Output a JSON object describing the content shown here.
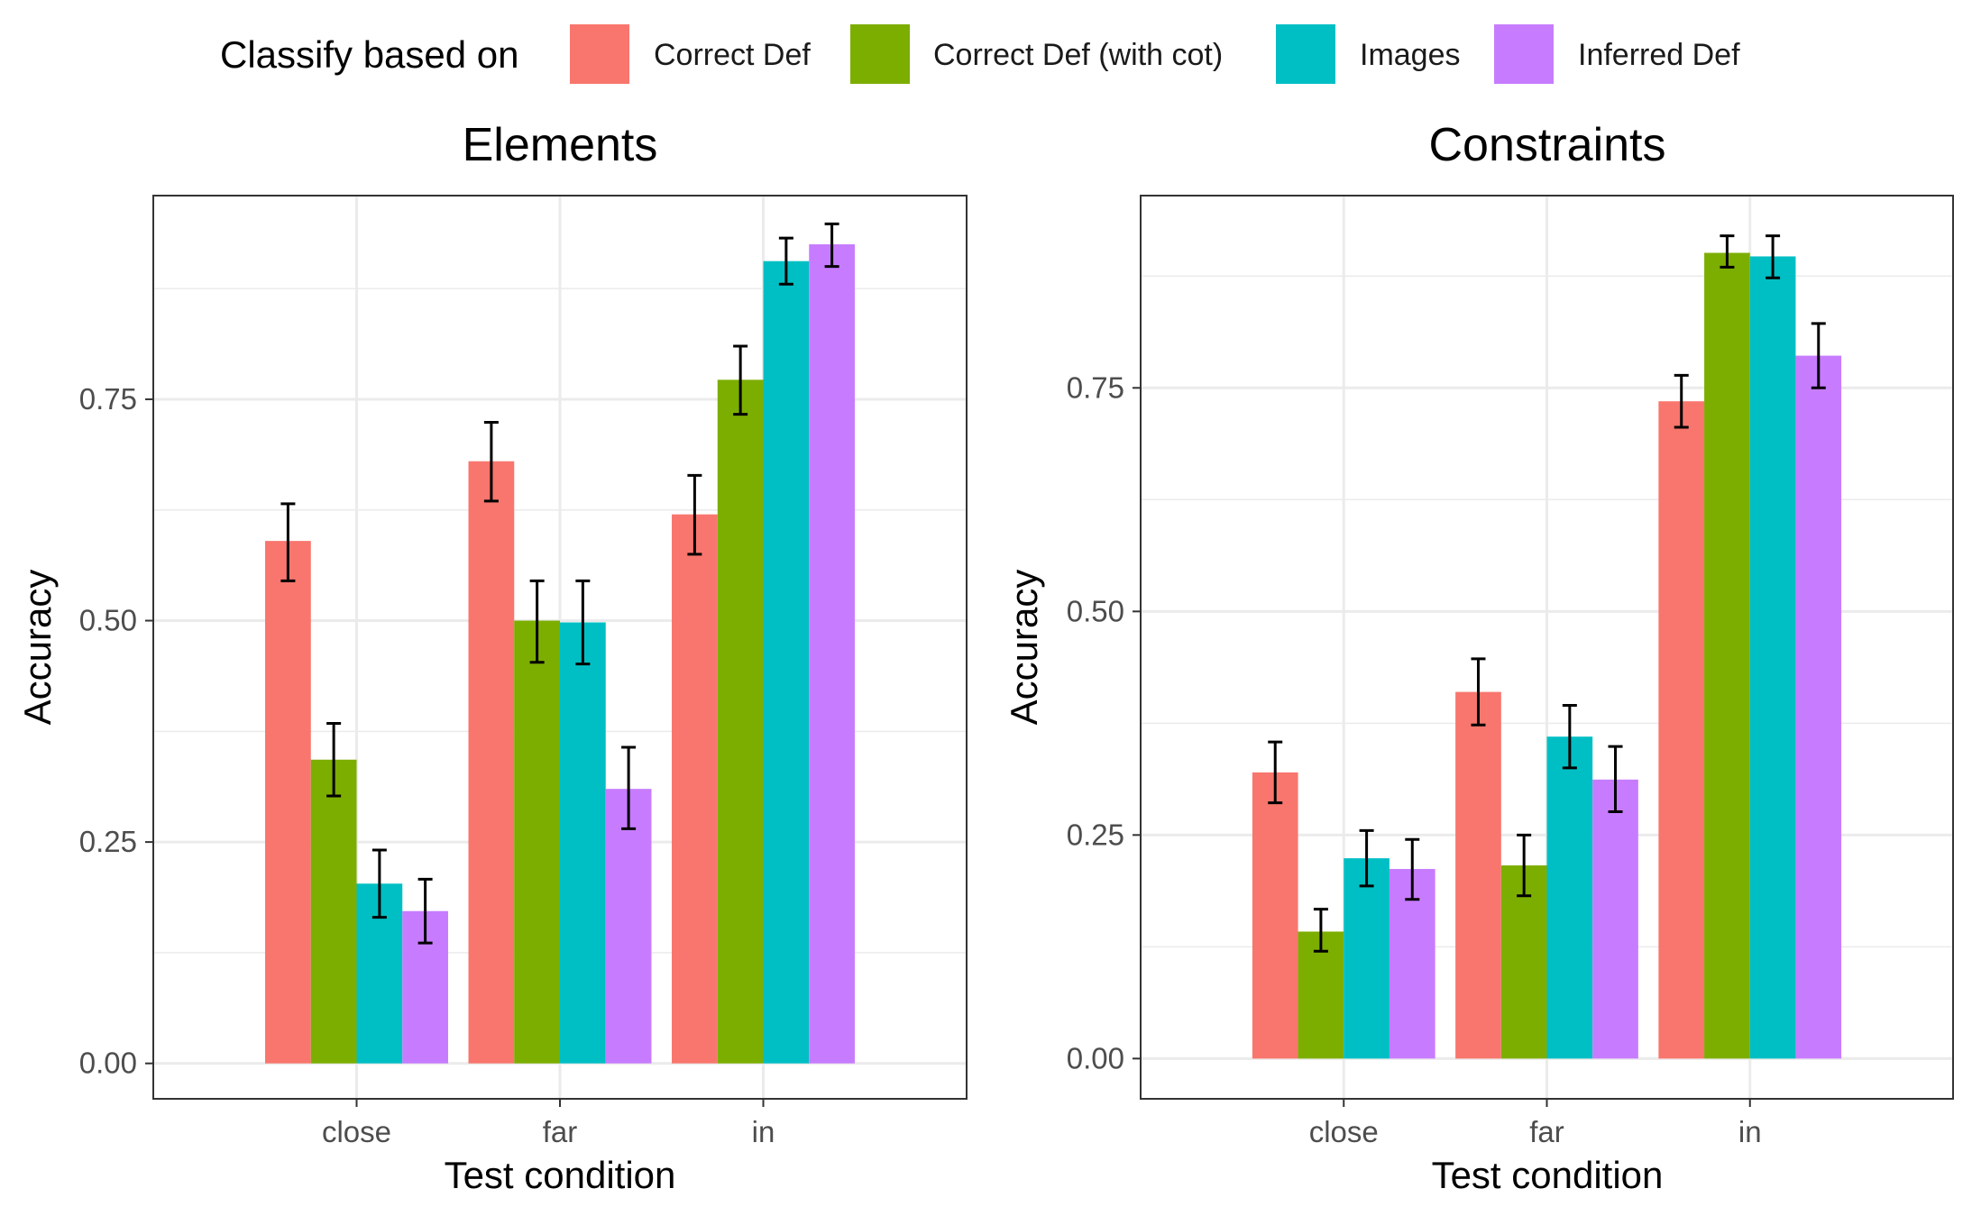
{
  "legend": {
    "title": "Classify based on",
    "entries": [
      {
        "label": "Correct Def",
        "color": "#F8766D"
      },
      {
        "label": "Correct Def (with cot)",
        "color": "#7CAE00"
      },
      {
        "label": "Images",
        "color": "#00BFC4"
      },
      {
        "label": "Inferred Def",
        "color": "#C77CFF"
      }
    ]
  },
  "chart_data": [
    {
      "type": "bar",
      "title": "Elements",
      "xlabel": "Test condition",
      "ylabel": "Accuracy",
      "categories": [
        "close",
        "far",
        "in"
      ],
      "ylim": [
        -0.04,
        0.98
      ],
      "yticks": [
        0.0,
        0.25,
        0.5,
        0.75
      ],
      "ytick_labels": [
        "0.00",
        "0.25",
        "0.50",
        "0.75"
      ],
      "grid": true,
      "series": [
        {
          "name": "Correct Def",
          "values": [
            0.59,
            0.68,
            0.62
          ],
          "err_low": [
            0.545,
            0.635,
            0.575
          ],
          "err_high": [
            0.632,
            0.724,
            0.664
          ]
        },
        {
          "name": "Correct Def (with cot)",
          "values": [
            0.343,
            0.5,
            0.772
          ],
          "err_low": [
            0.302,
            0.453,
            0.733
          ],
          "err_high": [
            0.384,
            0.545,
            0.81
          ]
        },
        {
          "name": "Images",
          "values": [
            0.203,
            0.498,
            0.906
          ],
          "err_low": [
            0.165,
            0.451,
            0.88
          ],
          "err_high": [
            0.241,
            0.545,
            0.932
          ]
        },
        {
          "name": "Inferred Def",
          "values": [
            0.172,
            0.31,
            0.925
          ],
          "err_low": [
            0.136,
            0.265,
            0.9
          ],
          "err_high": [
            0.208,
            0.357,
            0.948
          ]
        }
      ]
    },
    {
      "type": "bar",
      "title": "Constraints",
      "xlabel": "Test condition",
      "ylabel": "Accuracy",
      "categories": [
        "close",
        "far",
        "in"
      ],
      "ylim": [
        -0.045,
        0.965
      ],
      "yticks": [
        0.0,
        0.25,
        0.5,
        0.75
      ],
      "ytick_labels": [
        "0.00",
        "0.25",
        "0.50",
        "0.75"
      ],
      "grid": true,
      "series": [
        {
          "name": "Correct Def",
          "values": [
            0.32,
            0.41,
            0.735
          ],
          "err_low": [
            0.286,
            0.373,
            0.706
          ],
          "err_high": [
            0.354,
            0.447,
            0.764
          ]
        },
        {
          "name": "Correct Def (with cot)",
          "values": [
            0.142,
            0.216,
            0.901
          ],
          "err_low": [
            0.12,
            0.182,
            0.885
          ],
          "err_high": [
            0.167,
            0.25,
            0.92
          ]
        },
        {
          "name": "Images",
          "values": [
            0.224,
            0.36,
            0.897
          ],
          "err_low": [
            0.193,
            0.325,
            0.873
          ],
          "err_high": [
            0.255,
            0.395,
            0.92
          ]
        },
        {
          "name": "Inferred Def",
          "values": [
            0.212,
            0.312,
            0.786
          ],
          "err_low": [
            0.178,
            0.276,
            0.75
          ],
          "err_high": [
            0.245,
            0.349,
            0.822
          ]
        }
      ]
    }
  ]
}
